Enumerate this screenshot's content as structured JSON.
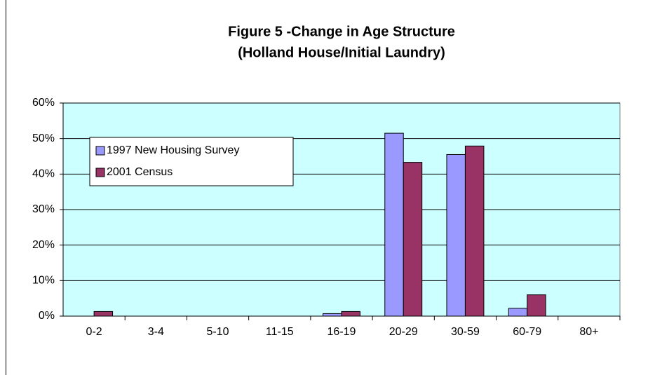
{
  "chart_data": {
    "type": "bar",
    "title": [
      "Figure 5 -Change in Age Structure",
      "(Holland House/Initial Laundry)"
    ],
    "categories": [
      "0-2",
      "3-4",
      "5-10",
      "11-15",
      "16-19",
      "20-29",
      "30-59",
      "60-79",
      "80+"
    ],
    "series": [
      {
        "name": "1997 New Housing Survey",
        "color": "#9999ff",
        "values": [
          0,
          0,
          0,
          0,
          0.7,
          51.5,
          45.5,
          2.2,
          0
        ]
      },
      {
        "name": "2001 Census",
        "color": "#993366",
        "values": [
          1.3,
          0,
          0,
          0,
          1.3,
          43.3,
          47.9,
          6.0,
          0
        ]
      }
    ],
    "ylim": [
      0,
      60
    ],
    "yticks": [
      {
        "value": 0,
        "label": "0%"
      },
      {
        "value": 10,
        "label": "10%"
      },
      {
        "value": 20,
        "label": "20%"
      },
      {
        "value": 30,
        "label": "30%"
      },
      {
        "value": 40,
        "label": "40%"
      },
      {
        "value": 50,
        "label": "50%"
      },
      {
        "value": 60,
        "label": "60%"
      }
    ],
    "grid": true,
    "legend": "upper left",
    "plot_background": "#ccffff"
  }
}
